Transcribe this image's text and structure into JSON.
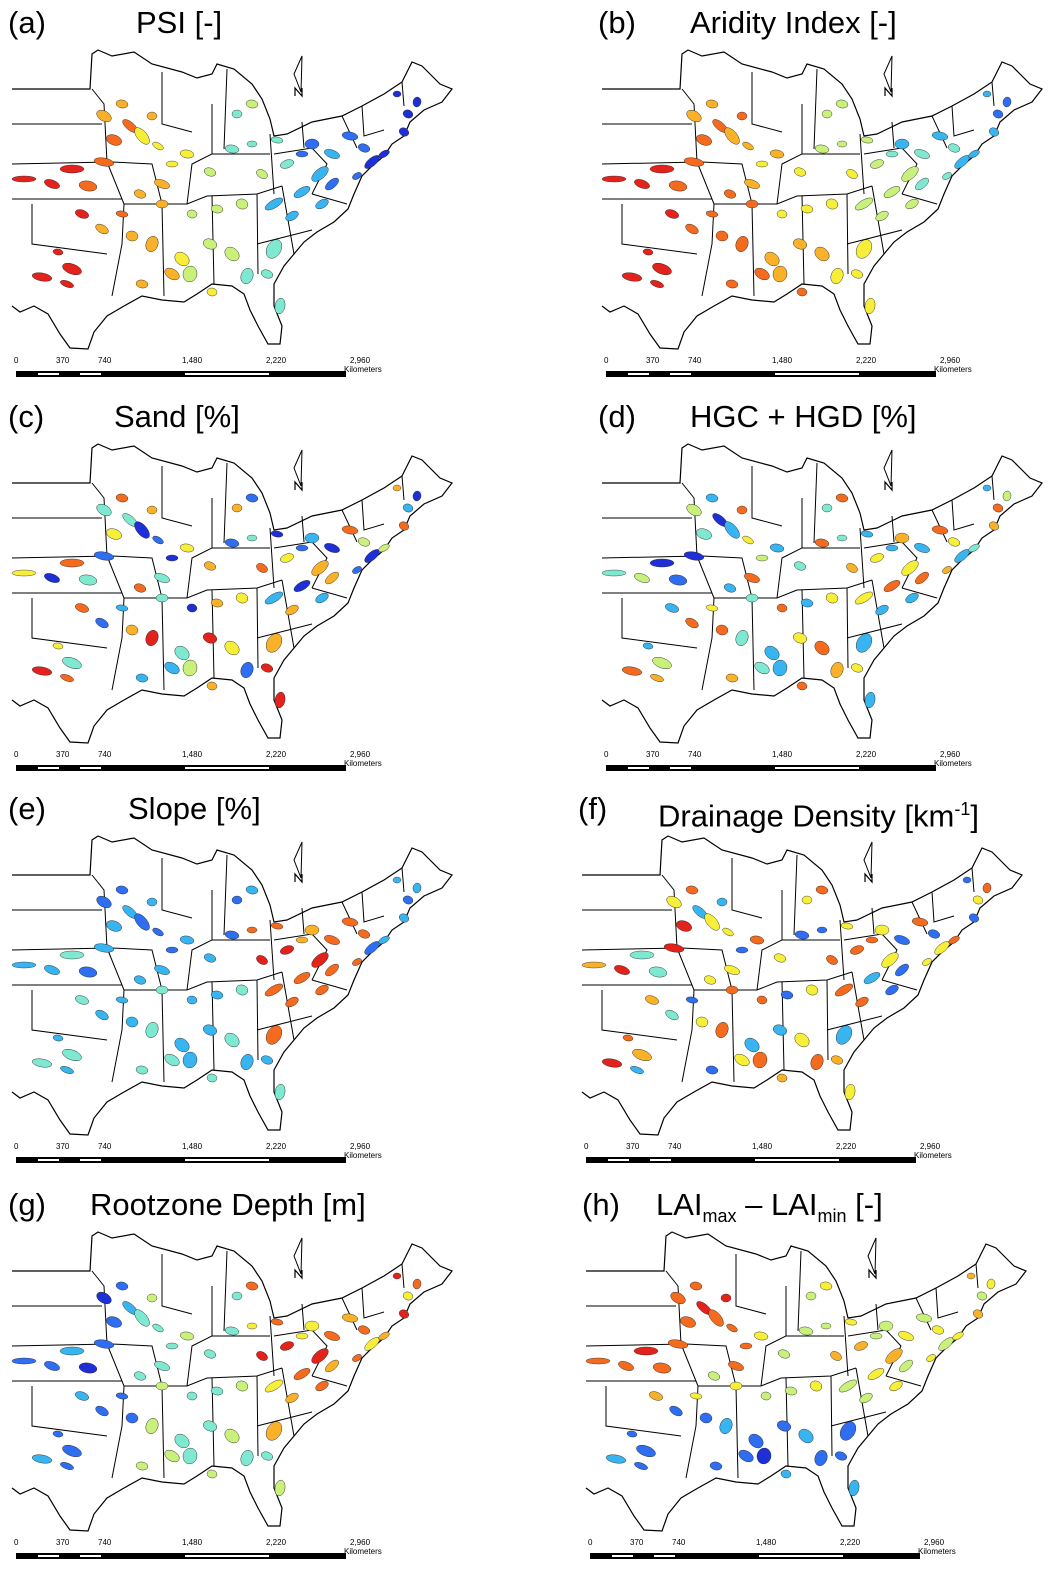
{
  "panels": [
    {
      "label": "(a)",
      "title": "PSI [-]",
      "scheme": "psi"
    },
    {
      "label": "(b)",
      "title": "Aridity Index [-]",
      "scheme": "aridity"
    },
    {
      "label": "(c)",
      "title": "Sand [%]",
      "scheme": "sand"
    },
    {
      "label": "(d)",
      "title": "HGC + HGD [%]",
      "scheme": "hg"
    },
    {
      "label": "(e)",
      "title": "Slope [%]",
      "scheme": "slope"
    },
    {
      "label": "(f)",
      "title_main": "Drainage Density [km",
      "title_sup": "-1",
      "title_end": "]",
      "scheme": "drainage"
    },
    {
      "label": "(g)",
      "title": "Rootzone Depth [m]",
      "scheme": "root"
    },
    {
      "label": "(h)",
      "title_a": "LAI",
      "title_sub1": "max",
      "title_b": " – LAI",
      "title_sub2": "min",
      "title_c": " [-]",
      "scheme": "lai"
    }
  ],
  "scalebar": {
    "ticks": [
      "0",
      "370",
      "740",
      "1,480",
      "2,220",
      "2,960"
    ],
    "unit": "Kilometers"
  },
  "colors": {
    "ramp": [
      "#1f2fd6",
      "#2f6ef0",
      "#38b4f0",
      "#7fe8d0",
      "#c8f07a",
      "#f7ee3a",
      "#f9b12a",
      "#f46a1f",
      "#e3221b"
    ]
  }
}
